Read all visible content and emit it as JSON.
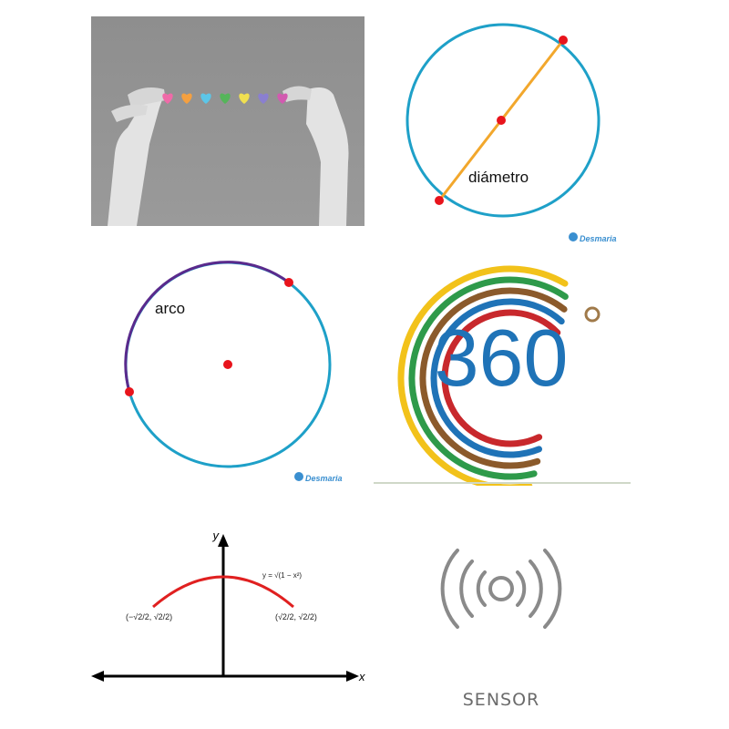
{
  "panels": {
    "hearts_photo": {
      "heart_colors": [
        "#f06aa8",
        "#f5a040",
        "#5cc6e8",
        "#55b55a",
        "#f0e050",
        "#8a7fd0",
        "#d25ab0"
      ]
    },
    "diameter": {
      "label": "diámetro",
      "watermark": "Desmaria",
      "circle_color": "#1ea0c8",
      "line_color": "#f2a72c",
      "point_color": "#e8141c"
    },
    "arc": {
      "label": "arco",
      "watermark": "Desmaria",
      "circle_color": "#1ea0c8",
      "arc_color": "#5a2a8c",
      "point_color": "#e8141c"
    },
    "logo_360": {
      "text": "360",
      "text_color": "#1f73b7",
      "degree_symbol": "°",
      "ring_colors": [
        "#f2c21a",
        "#2e9a4a",
        "#8b5a2b",
        "#1f73b7",
        "#c8282c"
      ]
    },
    "semicircle_graph": {
      "x_label": "x",
      "y_label": "y",
      "equation": "y = √(1 − x²)",
      "left_point": "(−√2/2, √2/2)",
      "right_point": "(√2/2, √2/2)",
      "curve_color": "#e02020"
    },
    "sensor": {
      "label": "SENSOR",
      "icon": "wireless-sensor-icon",
      "icon_color": "#8a8a8a"
    }
  }
}
